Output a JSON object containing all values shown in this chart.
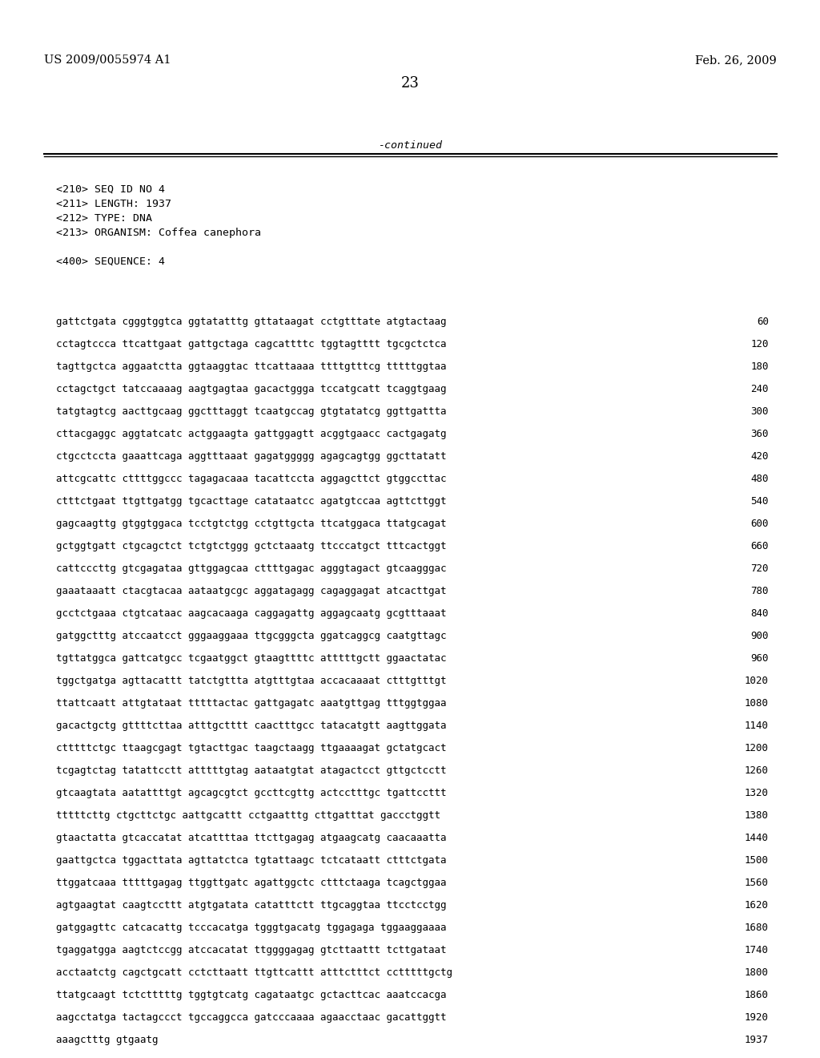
{
  "top_left": "US 2009/0055974 A1",
  "top_right": "Feb. 26, 2009",
  "page_number": "23",
  "continued_label": "-continued",
  "header_lines": [
    "<210> SEQ ID NO 4",
    "<211> LENGTH: 1937",
    "<212> TYPE: DNA",
    "<213> ORGANISM: Coffea canephora",
    "",
    "<400> SEQUENCE: 4"
  ],
  "sequence_lines": [
    [
      "gattctgata cgggtggtca ggtatatttg gttataagat cctgtttate atgtactaag",
      "60"
    ],
    [
      "cctagtccca ttcattgaat gattgctaga cagcattttc tggtagtttt tgcgctctca",
      "120"
    ],
    [
      "tagttgctca aggaatctta ggtaaggtac ttcattaaaa ttttgtttcg tttttggtaa",
      "180"
    ],
    [
      "cctagctgct tatccaaaag aagtgagtaa gacactggga tccatgcatt tcaggtgaag",
      "240"
    ],
    [
      "tatgtagtcg aacttgcaag ggctttaggt tcaatgccag gtgtatatcg ggttgattta",
      "300"
    ],
    [
      "cttacgaggc aggtatcatc actggaagta gattggagtt acggtgaacc cactgagatg",
      "360"
    ],
    [
      "ctgcctccta gaaattcaga aggtttaaat gagatggggg agagcagtgg ggcttatatt",
      "420"
    ],
    [
      "attcgcattc cttttggccc tagagacaaa tacattccta aggagcttct gtggccttac",
      "480"
    ],
    [
      "ctttctgaat ttgttgatgg tgcacttage catataatcc agatgtccaa agttcttggt",
      "540"
    ],
    [
      "gagcaagttg gtggtggaca tcctgtctgg cctgttgcta ttcatggaca ttatgcagat",
      "600"
    ],
    [
      "gctggtgatt ctgcagctct tctgtctggg gctctaaatg ttcccatgct tttcactggt",
      "660"
    ],
    [
      "cattcccttg gtcgagataa gttggagcaa cttttgagac agggtagact gtcaagggac",
      "720"
    ],
    [
      "gaaataaatt ctacgtacaa aataatgcgc aggatagagg cagaggagat atcacttgat",
      "780"
    ],
    [
      "gcctctgaaa ctgtcataac aagcacaaga caggagattg aggagcaatg gcgtttaaat",
      "840"
    ],
    [
      "gatggctttg atccaatcct gggaaggaaa ttgcgggcta ggatcaggcg caatgttagc",
      "900"
    ],
    [
      "tgttatggca gattcatgcc tcgaatggct gtaagttttc atttttgctt ggaactatac",
      "960"
    ],
    [
      "tggctgatga agttacattt tatctgttta atgtttgtaa accacaaaat ctttgtttgt",
      "1020"
    ],
    [
      "ttattcaatt attgtataat tttttactac gattgagatc aaatgttgag tttggtggaa",
      "1080"
    ],
    [
      "gacactgctg gttttcttaa atttgctttt caactttgcc tatacatgtt aagttggata",
      "1140"
    ],
    [
      "ctttttctgc ttaagcgagt tgtacttgac taagctaagg ttgaaaagat gctatgcact",
      "1200"
    ],
    [
      "tcgagtctag tatattcctt atttttgtag aataatgtat atagactcct gttgctcctt",
      "1260"
    ],
    [
      "gtcaagtata aatattttgt agcagcgtct gccttcgttg actcctttgc tgattccttt",
      "1320"
    ],
    [
      "tttttcttg ctgcttctgc aattgcattt cctgaatttg cttgatttat gaccctggtt",
      "1380"
    ],
    [
      "gtaactatta gtcaccatat atcattttaa ttcttgagag atgaagcatg caacaaatta",
      "1440"
    ],
    [
      "gaattgctca tggacttata agttatctca tgtattaagc tctcataatt ctttctgata",
      "1500"
    ],
    [
      "ttggatcaaa tttttgagag ttggttgatc agattggctc ctttctaaga tcagctggaa",
      "1560"
    ],
    [
      "agtgaagtat caagtccttt atgtgatata catatttctt ttgcaggtaa ttcctcctgg",
      "1620"
    ],
    [
      "gatggagttc catcacattg tcccacatga tgggtgacatg tggagaga tggaaggaaaa",
      "1680"
    ],
    [
      "tgaggatgga aagtctccgg atccacatat ttggggagag gtcttaattt tcttgataat",
      "1740"
    ],
    [
      "acctaatctg cagctgcatt cctcttaatt ttgttcattt atttctttct cctttttgctg",
      "1800"
    ],
    [
      "ttatgcaagt tctctttttg tggtgtcatg cagataatgc gctacttcac aaatccacga",
      "1860"
    ],
    [
      "aagcctatga tactagccct tgccaggcca gatcccaaaa agaacctaac gacattggtt",
      "1920"
    ],
    [
      "aaagctttg gtgaatg",
      "1937"
    ]
  ],
  "bg_color": "#ffffff",
  "text_color": "#000000",
  "font_size_header": 9.5,
  "font_size_seq": 9.0,
  "font_size_top": 10.5,
  "font_size_page": 13.0
}
